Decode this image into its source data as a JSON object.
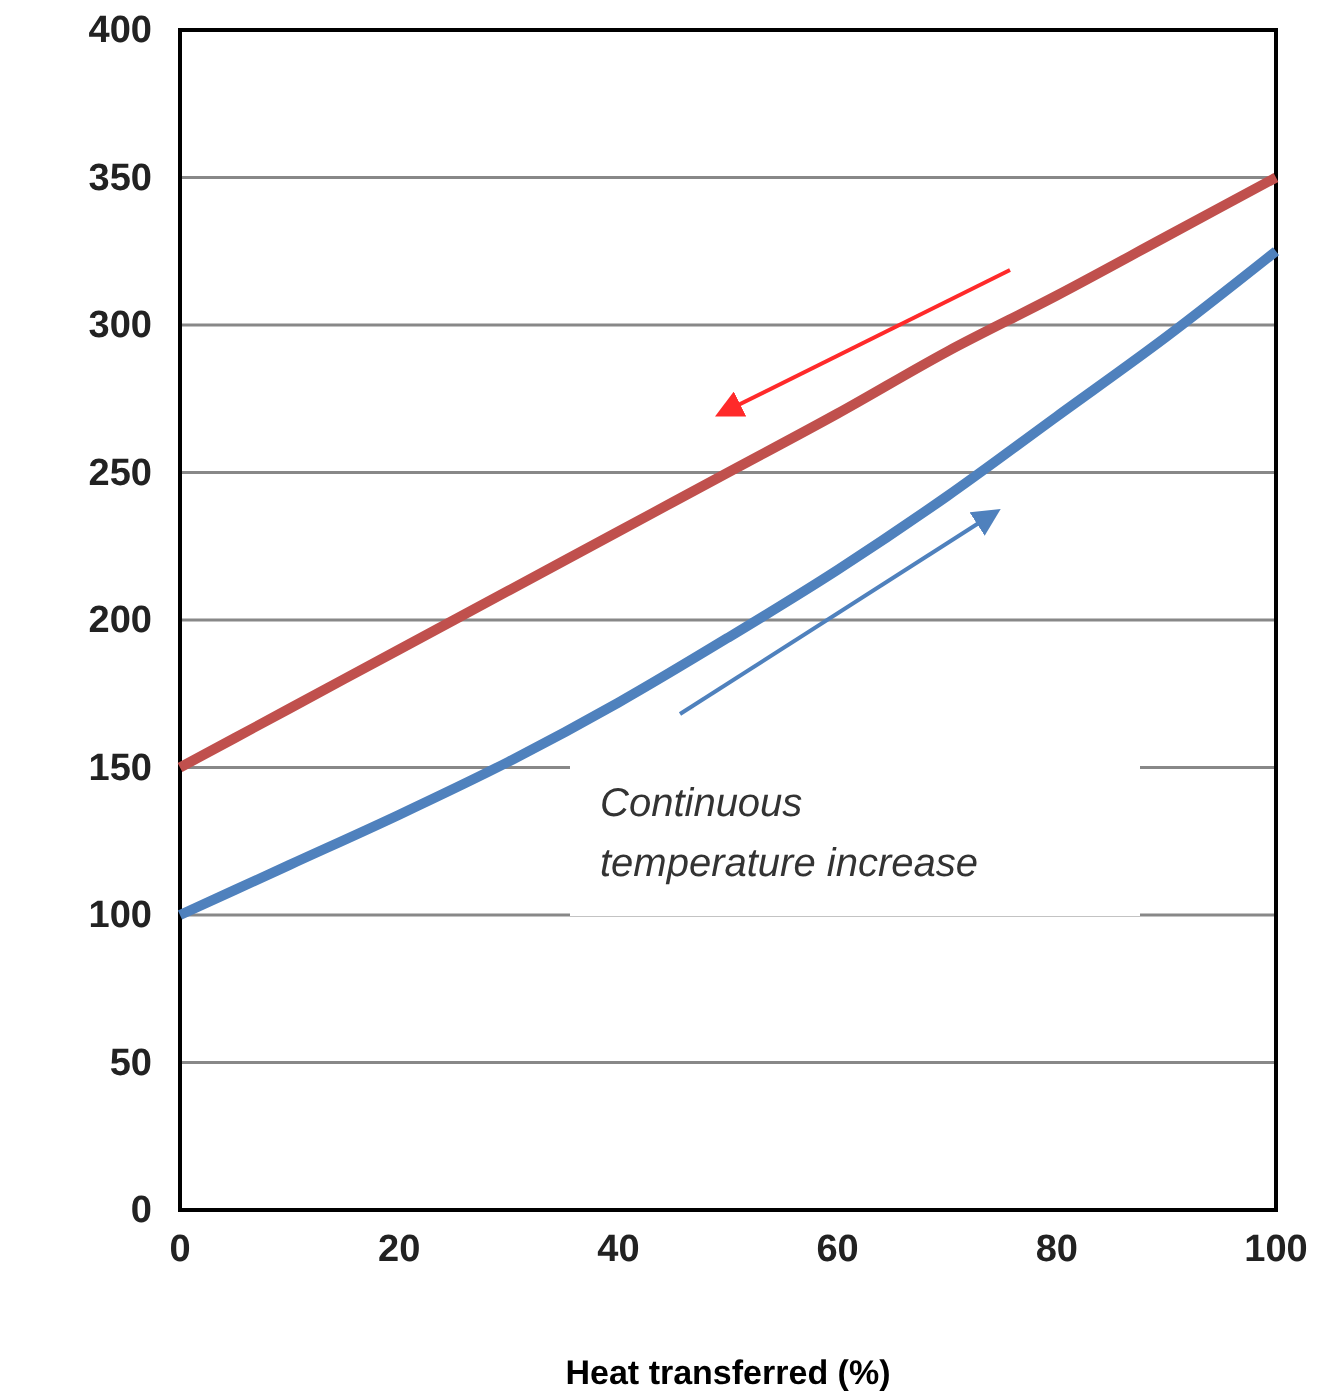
{
  "chart_data": {
    "type": "line",
    "xlabel": "Heat transferred (%)",
    "x": [
      0,
      10,
      20,
      30,
      40,
      50,
      60,
      70,
      80,
      90,
      100
    ],
    "series": [
      {
        "color": "#c0504d",
        "values": [
          150,
          170,
          190,
          210,
          230,
          250,
          270,
          291,
          310,
          330,
          350
        ]
      },
      {
        "color": "#4f81bd",
        "values": [
          100,
          117,
          134,
          152,
          172,
          194,
          217,
          242,
          269,
          296,
          325
        ]
      }
    ],
    "xlim": [
      0,
      100
    ],
    "xticks": [
      0,
      20,
      40,
      60,
      80,
      100
    ],
    "ylim": [
      0,
      400
    ],
    "yticks": [
      0,
      50,
      100,
      150,
      200,
      250,
      300,
      350,
      400
    ],
    "grid": "y",
    "marker": "none",
    "line_style": "solid",
    "annotations": [
      "Continuous temperature increase"
    ]
  }
}
